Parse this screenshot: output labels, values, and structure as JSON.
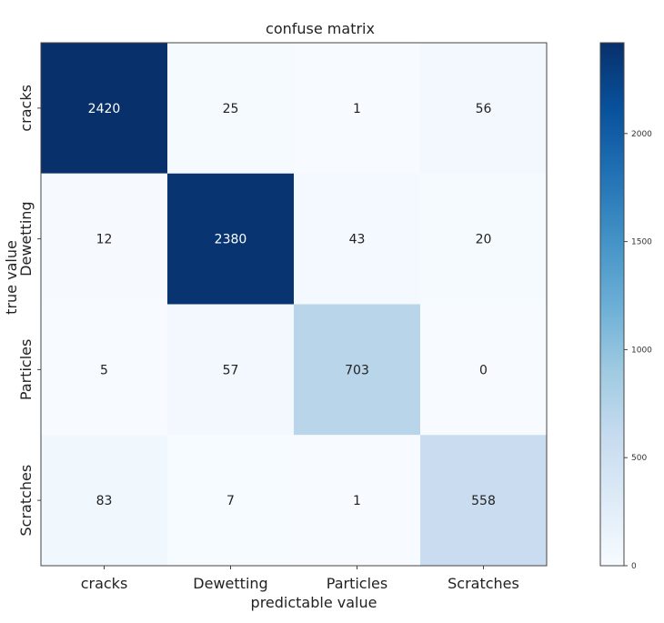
{
  "chart_data": {
    "type": "heatmap",
    "title": "confuse matrix",
    "xlabel": "predictable value",
    "ylabel": "true value",
    "x_categories": [
      "cracks",
      "Dewetting",
      "Particles",
      "Scratches"
    ],
    "y_categories": [
      "cracks",
      "Dewetting",
      "Particles",
      "Scratches"
    ],
    "values": [
      [
        2420,
        25,
        1,
        56
      ],
      [
        12,
        2380,
        43,
        20
      ],
      [
        5,
        57,
        703,
        0
      ],
      [
        83,
        7,
        1,
        558
      ]
    ],
    "cell_labels": [
      [
        "2420",
        "25",
        "1",
        "56"
      ],
      [
        "12",
        "2380",
        "43",
        "20"
      ],
      [
        "5",
        "57",
        "703",
        "0"
      ],
      [
        "83",
        "7",
        "1",
        "558"
      ]
    ],
    "colormap": "Blues",
    "colorbar": {
      "range": [
        0,
        2420
      ],
      "ticks": [
        0,
        500,
        1000,
        1500,
        2000
      ],
      "tick_labels": [
        "0",
        "500",
        "1000",
        "1500",
        "2000"
      ]
    }
  }
}
